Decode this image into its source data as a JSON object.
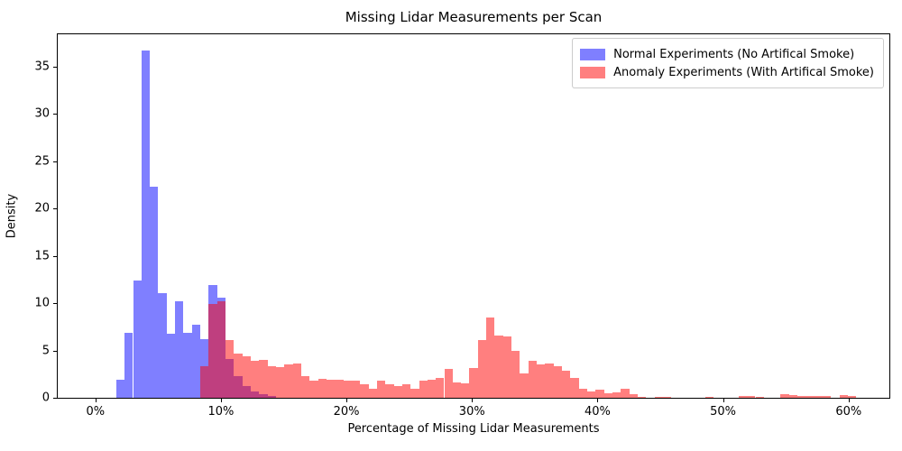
{
  "title": "Missing Lidar Measurements per Scan",
  "xlabel": "Percentage of Missing Lidar Measurements",
  "ylabel": "Density",
  "legend": {
    "items": [
      {
        "label": "Normal Experiments (No Artifical Smoke)",
        "color": "rgba(0,0,255,0.5)"
      },
      {
        "label": "Anomaly Experiments (With Artifical Smoke)",
        "color": "rgba(255,0,0,0.5)"
      }
    ]
  },
  "colors": {
    "normal_fill_blend": "#7f7fff",
    "anomaly_fill_blend": "#ff7f7f",
    "overlap_blend": "#bf4080",
    "axis": "#000000"
  },
  "chart_data": {
    "type": "bar",
    "subtype": "overlaid-density-histograms",
    "title": "Missing Lidar Measurements per Scan",
    "xlabel": "Percentage of Missing Lidar Measurements",
    "ylabel": "Density",
    "x_tick_labels": [
      "0%",
      "10%",
      "20%",
      "30%",
      "40%",
      "50%",
      "60%"
    ],
    "x_tick_values": [
      0,
      10,
      20,
      30,
      40,
      50,
      60
    ],
    "y_tick_values": [
      0,
      5,
      10,
      15,
      20,
      25,
      30,
      35
    ],
    "xlim": [
      -3,
      63.25
    ],
    "ylim": [
      0,
      38.4
    ],
    "grid": false,
    "legend_position": "upper right",
    "bin_width_percent": 0.67,
    "series": [
      {
        "name": "Normal Experiments (No Artifical Smoke)",
        "fill": "rgba(0,0,255,0.5)",
        "bins_start_pct_and_density": [
          [
            1.66,
            1.9
          ],
          [
            2.33,
            6.9
          ],
          [
            3.0,
            12.4
          ],
          [
            3.67,
            36.7
          ],
          [
            4.34,
            22.3
          ],
          [
            5.01,
            11.1
          ],
          [
            5.68,
            6.8
          ],
          [
            6.35,
            10.2
          ],
          [
            7.02,
            6.9
          ],
          [
            7.69,
            7.7
          ],
          [
            8.36,
            6.2
          ],
          [
            9.03,
            11.9
          ],
          [
            9.7,
            10.6
          ],
          [
            10.37,
            4.1
          ],
          [
            11.04,
            2.3
          ],
          [
            11.71,
            1.2
          ],
          [
            12.38,
            0.7
          ],
          [
            13.05,
            0.4
          ],
          [
            13.72,
            0.2
          ]
        ]
      },
      {
        "name": "Anomaly Experiments (With Artifical Smoke)",
        "fill": "rgba(255,0,0,0.5)",
        "bins_start_pct_and_density": [
          [
            8.36,
            3.3
          ],
          [
            9.03,
            9.9
          ],
          [
            9.7,
            10.2
          ],
          [
            10.37,
            6.1
          ],
          [
            11.04,
            4.7
          ],
          [
            11.71,
            4.4
          ],
          [
            12.38,
            3.9
          ],
          [
            13.05,
            4.0
          ],
          [
            13.72,
            3.3
          ],
          [
            14.39,
            3.2
          ],
          [
            15.06,
            3.5
          ],
          [
            15.73,
            3.6
          ],
          [
            16.4,
            2.3
          ],
          [
            17.07,
            1.8
          ],
          [
            17.74,
            2.0
          ],
          [
            18.41,
            1.9
          ],
          [
            19.08,
            1.95
          ],
          [
            19.75,
            1.8
          ],
          [
            20.42,
            1.85
          ],
          [
            21.09,
            1.4
          ],
          [
            21.76,
            1.0
          ],
          [
            22.43,
            1.85
          ],
          [
            23.1,
            1.45
          ],
          [
            23.77,
            1.2
          ],
          [
            24.44,
            1.45
          ],
          [
            25.11,
            1.0
          ],
          [
            25.78,
            1.85
          ],
          [
            26.45,
            1.95
          ],
          [
            27.12,
            2.1
          ],
          [
            27.79,
            3.05
          ],
          [
            28.46,
            1.6
          ],
          [
            29.13,
            1.5
          ],
          [
            29.8,
            3.1
          ],
          [
            30.47,
            6.1
          ],
          [
            31.14,
            8.5
          ],
          [
            31.81,
            6.6
          ],
          [
            32.48,
            6.45
          ],
          [
            33.15,
            5.0
          ],
          [
            33.82,
            2.6
          ],
          [
            34.49,
            3.9
          ],
          [
            35.16,
            3.5
          ],
          [
            35.83,
            3.6
          ],
          [
            36.5,
            3.3
          ],
          [
            37.17,
            2.9
          ],
          [
            37.84,
            2.1
          ],
          [
            38.51,
            1.0
          ],
          [
            39.18,
            0.65
          ],
          [
            39.85,
            0.85
          ],
          [
            40.52,
            0.45
          ],
          [
            41.19,
            0.6
          ],
          [
            41.86,
            1.0
          ],
          [
            42.53,
            0.35
          ],
          [
            43.2,
            0.12
          ],
          [
            44.54,
            0.12
          ],
          [
            45.21,
            0.08
          ],
          [
            48.56,
            0.08
          ],
          [
            51.24,
            0.15
          ],
          [
            51.91,
            0.15
          ],
          [
            52.58,
            0.12
          ],
          [
            54.59,
            0.4
          ],
          [
            55.26,
            0.3
          ],
          [
            55.93,
            0.15
          ],
          [
            56.6,
            0.15
          ],
          [
            57.27,
            0.15
          ],
          [
            57.94,
            0.15
          ],
          [
            59.28,
            0.3
          ],
          [
            59.95,
            0.15
          ]
        ]
      }
    ]
  }
}
